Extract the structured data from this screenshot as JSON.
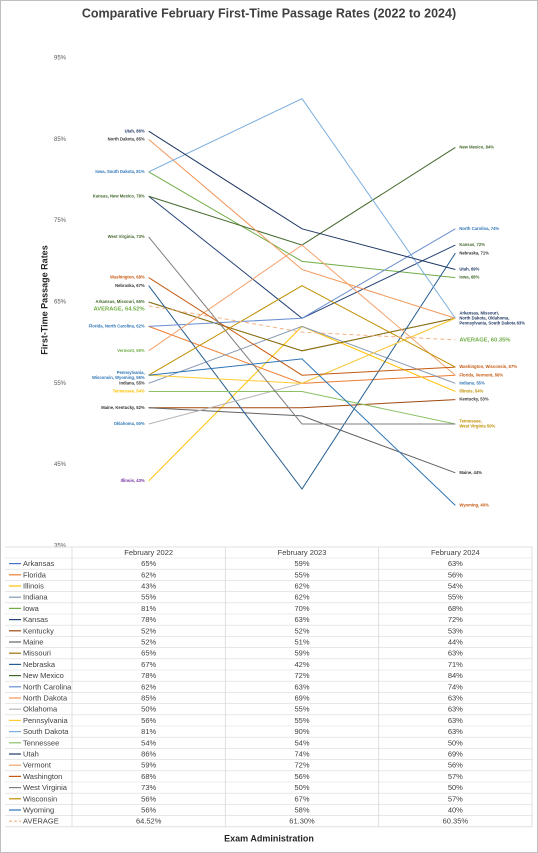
{
  "chart_data": {
    "type": "line",
    "title": "Comparative February First-Time Passage Rates (2022 to 2024)",
    "y_label": "First-Time Passage Rates",
    "x_label": "Exam Administration",
    "categories": [
      "February 2022",
      "February 2023",
      "February 2024"
    ],
    "ylim": [
      35,
      95
    ],
    "yticks": [
      {
        "value": 35,
        "label": "35%"
      },
      {
        "value": 45,
        "label": "45%"
      },
      {
        "value": 55,
        "label": "55%"
      },
      {
        "value": 65,
        "label": "65%"
      },
      {
        "value": 75,
        "label": "75%"
      },
      {
        "value": 85,
        "label": "85%"
      },
      {
        "value": 95,
        "label": "95%"
      }
    ],
    "series": [
      {
        "name": "Arkansas",
        "color": "#4472c4",
        "values": [
          65,
          59,
          63
        ],
        "value_labels": [
          "65%",
          "59%",
          "63%"
        ]
      },
      {
        "name": "Florida",
        "color": "#ed7d31",
        "values": [
          62,
          55,
          56
        ],
        "value_labels": [
          "62%",
          "55%",
          "56%"
        ]
      },
      {
        "name": "Illinois",
        "color": "#ffc000",
        "values": [
          43,
          62,
          54
        ],
        "value_labels": [
          "43%",
          "62%",
          "54%"
        ]
      },
      {
        "name": "Indiana",
        "color": "#8497b0",
        "values": [
          55,
          62,
          55
        ],
        "value_labels": [
          "55%",
          "62%",
          "55%"
        ]
      },
      {
        "name": "Iowa",
        "color": "#70ad47",
        "values": [
          81,
          70,
          68
        ],
        "value_labels": [
          "81%",
          "70%",
          "68%"
        ]
      },
      {
        "name": "Kansas",
        "color": "#264478",
        "values": [
          78,
          63,
          72
        ],
        "value_labels": [
          "78%",
          "63%",
          "72%"
        ]
      },
      {
        "name": "Kentucky",
        "color": "#9e480e",
        "values": [
          52,
          52,
          53
        ],
        "value_labels": [
          "52%",
          "52%",
          "53%"
        ]
      },
      {
        "name": "Maine",
        "color": "#636363",
        "values": [
          52,
          51,
          44
        ],
        "value_labels": [
          "52%",
          "51%",
          "44%"
        ]
      },
      {
        "name": "Missouri",
        "color": "#997300",
        "values": [
          65,
          59,
          63
        ],
        "value_labels": [
          "65%",
          "59%",
          "63%"
        ]
      },
      {
        "name": "Nebraska",
        "color": "#255e91",
        "values": [
          67,
          42,
          71
        ],
        "value_labels": [
          "67%",
          "42%",
          "71%"
        ]
      },
      {
        "name": "New Mexico",
        "color": "#43682b",
        "values": [
          78,
          72,
          84
        ],
        "value_labels": [
          "78%",
          "72%",
          "84%"
        ]
      },
      {
        "name": "North Carolina",
        "color": "#698ed0",
        "values": [
          62,
          63,
          74
        ],
        "value_labels": [
          "62%",
          "63%",
          "74%"
        ]
      },
      {
        "name": "North Dakota",
        "color": "#f1975a",
        "values": [
          85,
          69,
          63
        ],
        "value_labels": [
          "85%",
          "69%",
          "63%"
        ]
      },
      {
        "name": "Oklahoma",
        "color": "#b7b7b7",
        "values": [
          50,
          55,
          63
        ],
        "value_labels": [
          "50%",
          "55%",
          "63%"
        ]
      },
      {
        "name": "Pennsylvania",
        "color": "#ffcd33",
        "values": [
          56,
          55,
          63
        ],
        "value_labels": [
          "56%",
          "55%",
          "63%"
        ]
      },
      {
        "name": "South Dakota",
        "color": "#7cafdd",
        "values": [
          81,
          90,
          63
        ],
        "value_labels": [
          "81%",
          "90%",
          "63%"
        ]
      },
      {
        "name": "Tennessee",
        "color": "#8cc168",
        "values": [
          54,
          54,
          50
        ],
        "value_labels": [
          "54%",
          "54%",
          "50%"
        ]
      },
      {
        "name": "Utah",
        "color": "#1f3864",
        "values": [
          86,
          74,
          69
        ],
        "value_labels": [
          "86%",
          "74%",
          "69%"
        ]
      },
      {
        "name": "Vermont",
        "color": "#f4a36c",
        "values": [
          59,
          72,
          56
        ],
        "value_labels": [
          "59%",
          "72%",
          "56%"
        ]
      },
      {
        "name": "Washington",
        "color": "#c55a11",
        "values": [
          68,
          56,
          57
        ],
        "value_labels": [
          "68%",
          "56%",
          "57%"
        ]
      },
      {
        "name": "West Virginia",
        "color": "#7f7f7f",
        "values": [
          73,
          50,
          50
        ],
        "value_labels": [
          "73%",
          "50%",
          "50%"
        ]
      },
      {
        "name": "Wisconsin",
        "color": "#bf8f00",
        "values": [
          56,
          67,
          57
        ],
        "value_labels": [
          "56%",
          "67%",
          "57%"
        ]
      },
      {
        "name": "Wyoming",
        "color": "#2e75b6",
        "values": [
          56,
          58,
          40
        ],
        "value_labels": [
          "56%",
          "58%",
          "40%"
        ]
      },
      {
        "name": "AVERAGE",
        "color": "#f4b183",
        "dashed": true,
        "values": [
          64.52,
          61.3,
          60.35
        ],
        "value_labels": [
          "64.52%",
          "61.30%",
          "60.35%"
        ]
      }
    ],
    "left_labels": [
      {
        "lines": [
          "Utah, 86%"
        ],
        "value": 86,
        "color": "#1f3864"
      },
      {
        "lines": [
          "North Dakota, 85%"
        ],
        "value": 85,
        "color": "#333333"
      },
      {
        "lines": [
          "Iowa, South Dakota, 81%"
        ],
        "value": 81,
        "color": "#2e75b6"
      },
      {
        "lines": [
          "Kansas, New Mexico, 78%"
        ],
        "value": 78,
        "color": "#43682b"
      },
      {
        "lines": [
          "West Virginia, 73%"
        ],
        "value": 73,
        "color": "#43682b"
      },
      {
        "lines": [
          "Washington, 68%"
        ],
        "value": 68,
        "color": "#c55a11"
      },
      {
        "lines": [
          "Nebraska, 67%"
        ],
        "value": 67,
        "color": "#333333"
      },
      {
        "lines": [
          "Arkansas, Missouri, 65%"
        ],
        "value": 65,
        "color": "#43682b"
      },
      {
        "lines": [
          "AVERAGE, 64.52%"
        ],
        "value": 64.52,
        "color": "#70ad47",
        "large": true
      },
      {
        "lines": [
          "Florida, North Carolina, 62%"
        ],
        "value": 62,
        "color": "#2e75b6"
      },
      {
        "lines": [
          "Vermont, 59%"
        ],
        "value": 59,
        "color": "#70ad47"
      },
      {
        "lines": [
          "Pennsylvania,",
          "Wisconsin, Wyoming, 56%"
        ],
        "value": 56,
        "color": "#2e75b6"
      },
      {
        "lines": [
          "Indiana, 55%"
        ],
        "value": 55,
        "color": "#333333"
      },
      {
        "lines": [
          "Tennessee, 54%"
        ],
        "value": 54,
        "color": "#ffc000"
      },
      {
        "lines": [
          "Maine, Kentucky, 52%"
        ],
        "value": 52,
        "color": "#333333"
      },
      {
        "lines": [
          "Oklahoma, 50%"
        ],
        "value": 50,
        "color": "#2e75b6"
      },
      {
        "lines": [
          "Illinois, 43%"
        ],
        "value": 43,
        "color": "#7030a0"
      }
    ],
    "right_labels": [
      {
        "lines": [
          "New Mexico, 84%"
        ],
        "value": 84,
        "color": "#43682b"
      },
      {
        "lines": [
          "North Carolina, 74%"
        ],
        "value": 74,
        "color": "#2e75b6"
      },
      {
        "lines": [
          "Kansas, 72%"
        ],
        "value": 72,
        "color": "#43682b"
      },
      {
        "lines": [
          "Nebraska, 71%"
        ],
        "value": 71,
        "color": "#333333"
      },
      {
        "lines": [
          "Utah, 69%"
        ],
        "value": 69,
        "color": "#1f3864"
      },
      {
        "lines": [
          "Iowa, 68%"
        ],
        "value": 68,
        "color": "#43682b"
      },
      {
        "lines": [
          "Arkansas, Missouri,",
          "North Dakota, Oklahoma,",
          "Pennsylvania, South Dakota 63%"
        ],
        "value": 63,
        "color": "#1f3864"
      },
      {
        "lines": [
          "AVERAGE, 60.35%"
        ],
        "value": 60.35,
        "color": "#70ad47",
        "large": true
      },
      {
        "lines": [
          "Washington, Wisconsin, 57%"
        ],
        "value": 57,
        "color": "#c55a11"
      },
      {
        "lines": [
          "Florida, Vermont, 56%"
        ],
        "value": 56,
        "color": "#c55a11"
      },
      {
        "lines": [
          "Indiana, 55%"
        ],
        "value": 55,
        "color": "#2e75b6"
      },
      {
        "lines": [
          "Illinois, 54%"
        ],
        "value": 54,
        "color": "#bf8f00"
      },
      {
        "lines": [
          "Kentucky, 53%"
        ],
        "value": 53,
        "color": "#333333"
      },
      {
        "lines": [
          "Tennessee,",
          "West Virginia 50%"
        ],
        "value": 50,
        "color": "#bf8f00"
      },
      {
        "lines": [
          "Maine, 44%"
        ],
        "value": 44,
        "color": "#333333"
      },
      {
        "lines": [
          "Wyoming, 40%"
        ],
        "value": 40,
        "color": "#c55a11"
      }
    ]
  }
}
